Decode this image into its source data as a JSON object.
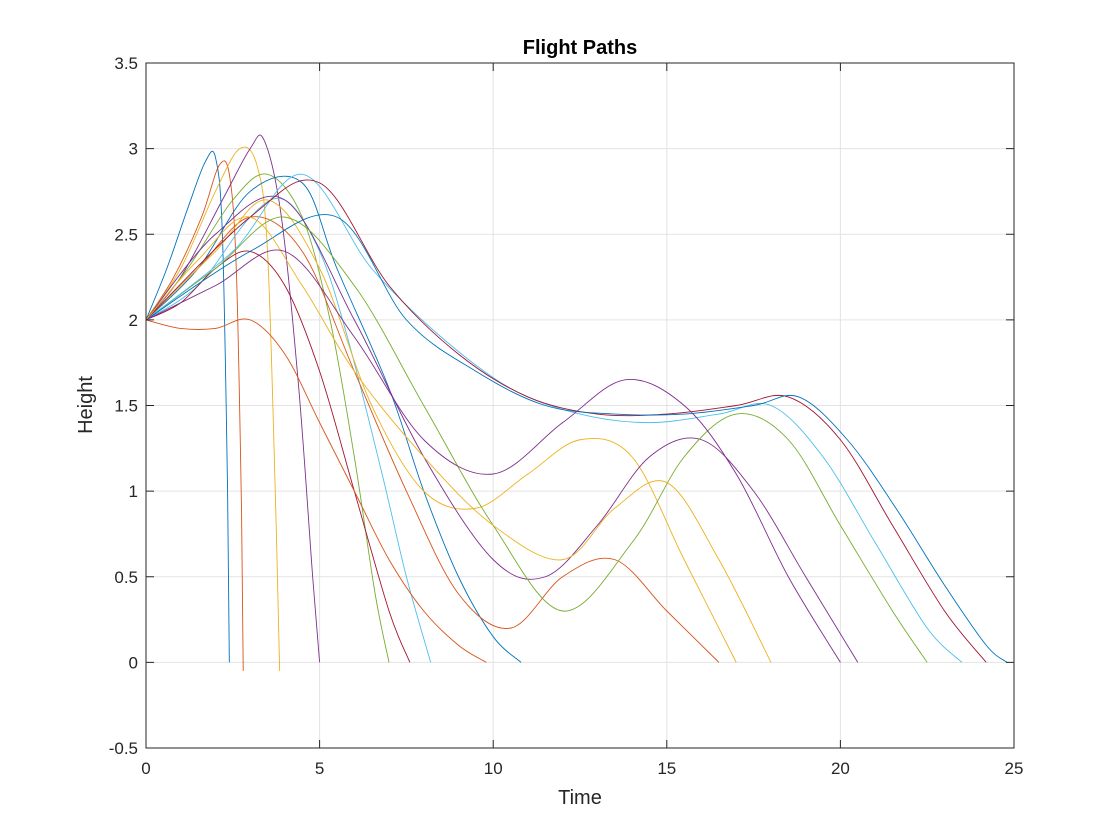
{
  "chart_data": {
    "type": "line",
    "title": "Flight Paths",
    "xlabel": "Time",
    "ylabel": "Height",
    "xlim": [
      0,
      25
    ],
    "ylim": [
      -0.5,
      3.5
    ],
    "xticks": [
      0,
      5,
      10,
      15,
      20,
      25
    ],
    "yticks": [
      -0.5,
      0,
      0.5,
      1,
      1.5,
      2,
      2.5,
      3,
      3.5
    ],
    "xtick_labels": [
      "0",
      "5",
      "10",
      "15",
      "20",
      "25"
    ],
    "ytick_labels": [
      "-0.5",
      "0",
      "0.5",
      "1",
      "1.5",
      "2",
      "2.5",
      "3",
      "3.5"
    ],
    "grid": true,
    "legend": "none",
    "colors": [
      "#0072BD",
      "#D95319",
      "#EDB120",
      "#7E2F8E",
      "#77AC30",
      "#4DBEEE",
      "#A2142F"
    ],
    "series": [
      {
        "x": [
          0,
          0.6,
          1.2,
          1.7,
          2.0,
          2.2,
          2.35,
          2.4
        ],
        "y": [
          2,
          2.3,
          2.65,
          2.92,
          2.95,
          2.5,
          1.0,
          0
        ]
      },
      {
        "x": [
          0,
          0.8,
          1.6,
          2.1,
          2.4,
          2.6,
          2.75,
          2.8
        ],
        "y": [
          2,
          2.25,
          2.6,
          2.9,
          2.85,
          2.3,
          0.9,
          -0.05
        ]
      },
      {
        "x": [
          0,
          1.0,
          2.0,
          2.7,
          3.2,
          3.5,
          3.75,
          3.85
        ],
        "y": [
          2,
          2.3,
          2.75,
          3.0,
          2.9,
          2.4,
          0.8,
          -0.05
        ]
      },
      {
        "x": [
          0,
          1.0,
          2.2,
          3.0,
          3.4,
          3.9,
          4.4,
          4.8,
          5.0
        ],
        "y": [
          2,
          2.25,
          2.7,
          3.0,
          3.05,
          2.6,
          1.6,
          0.5,
          0
        ]
      },
      {
        "x": [
          0,
          1.2,
          2.5,
          3.5,
          4.5,
          5.3,
          6.0,
          6.6,
          7.0
        ],
        "y": [
          2,
          2.3,
          2.7,
          2.85,
          2.6,
          2.0,
          1.2,
          0.4,
          0
        ]
      },
      {
        "x": [
          0,
          1.5,
          3.0,
          4.0,
          5.0,
          5.8,
          6.8,
          7.5,
          8.2
        ],
        "y": [
          2,
          2.2,
          2.6,
          2.7,
          2.4,
          1.9,
          1.1,
          0.5,
          0
        ]
      },
      {
        "x": [
          0,
          1.0,
          2.0,
          3.0,
          4.0,
          5.0,
          6.0,
          7.0,
          7.6
        ],
        "y": [
          2,
          2.1,
          2.3,
          2.4,
          2.2,
          1.7,
          1.0,
          0.3,
          0
        ]
      },
      {
        "x": [
          0,
          1.5,
          3.0,
          4.5,
          5.5,
          7.0,
          8.0,
          9.0,
          10.0,
          10.8
        ],
        "y": [
          2,
          2.3,
          2.75,
          2.8,
          2.3,
          1.6,
          1.0,
          0.5,
          0.15,
          0
        ]
      },
      {
        "x": [
          0,
          1.5,
          3.0,
          4.5,
          6.0,
          7.5,
          9.0,
          10.5,
          12.0,
          13.5,
          15.0,
          16.5
        ],
        "y": [
          2,
          2.3,
          2.6,
          2.4,
          1.7,
          1.0,
          0.4,
          0.2,
          0.5,
          0.6,
          0.3,
          0
        ]
      },
      {
        "x": [
          0,
          2.0,
          3.5,
          5.0,
          6.5,
          8.0,
          9.5,
          11.0,
          12.5,
          14.0,
          15.5,
          17.0
        ],
        "y": [
          2,
          2.4,
          2.7,
          2.3,
          1.5,
          1.0,
          0.9,
          1.1,
          1.3,
          1.2,
          0.6,
          0
        ]
      },
      {
        "x": [
          0,
          2.0,
          4.0,
          6.0,
          8.0,
          10.0,
          11.5,
          13.0,
          14.5,
          16.0,
          17.5,
          19.0,
          20.5
        ],
        "y": [
          2,
          2.5,
          2.7,
          2.0,
          1.2,
          0.6,
          0.5,
          0.8,
          1.2,
          1.3,
          1.0,
          0.5,
          0
        ]
      },
      {
        "x": [
          0,
          2.0,
          4.0,
          6.0,
          8.0,
          10.0,
          12.0,
          14.0,
          15.5,
          17.0,
          18.5,
          20.0,
          21.5,
          22.5
        ],
        "y": [
          2,
          2.3,
          2.6,
          2.2,
          1.5,
          0.8,
          0.3,
          0.7,
          1.2,
          1.45,
          1.3,
          0.8,
          0.3,
          0
        ]
      },
      {
        "x": [
          0,
          2.5,
          4.5,
          6.5,
          8.5,
          10.5,
          12.5,
          14.5,
          16.5,
          18.0,
          19.5,
          21.0,
          22.5,
          23.5
        ],
        "y": [
          2,
          2.4,
          2.85,
          2.3,
          1.9,
          1.6,
          1.45,
          1.4,
          1.45,
          1.5,
          1.2,
          0.7,
          0.2,
          0
        ]
      },
      {
        "x": [
          0,
          3.0,
          5.0,
          7.0,
          9.0,
          11.0,
          13.0,
          15.0,
          17.0,
          18.5,
          20.0,
          21.5,
          23.0,
          24.2
        ],
        "y": [
          2,
          2.6,
          2.8,
          2.2,
          1.8,
          1.55,
          1.45,
          1.45,
          1.5,
          1.55,
          1.3,
          0.8,
          0.3,
          0
        ]
      },
      {
        "x": [
          0,
          3.0,
          5.5,
          7.5,
          9.5,
          11.5,
          13.5,
          15.5,
          17.5,
          18.8,
          20.2,
          21.6,
          23.0,
          24.2,
          24.8
        ],
        "y": [
          2,
          2.4,
          2.6,
          2.0,
          1.7,
          1.5,
          1.45,
          1.45,
          1.5,
          1.55,
          1.3,
          0.9,
          0.45,
          0.1,
          0
        ]
      },
      {
        "x": [
          0,
          1.0,
          2.0,
          3.0,
          4.0,
          5.0,
          6.0,
          7.0,
          8.0,
          9.0,
          9.8
        ],
        "y": [
          2,
          1.95,
          1.95,
          2.0,
          1.8,
          1.4,
          1.0,
          0.6,
          0.3,
          0.1,
          0
        ]
      },
      {
        "x": [
          0,
          1.5,
          3.0,
          4.5,
          6.0,
          8.0,
          10.0,
          12.0,
          13.5,
          15.0,
          16.5,
          18.0
        ],
        "y": [
          2,
          2.35,
          2.6,
          2.2,
          1.7,
          1.2,
          0.8,
          0.6,
          0.9,
          1.05,
          0.6,
          0
        ]
      },
      {
        "x": [
          0,
          2.0,
          4.0,
          6.0,
          8.0,
          10.0,
          12.0,
          13.8,
          15.5,
          17.0,
          18.5,
          20.0
        ],
        "y": [
          2,
          2.2,
          2.4,
          1.9,
          1.3,
          1.1,
          1.4,
          1.65,
          1.5,
          1.1,
          0.5,
          0
        ]
      }
    ]
  }
}
